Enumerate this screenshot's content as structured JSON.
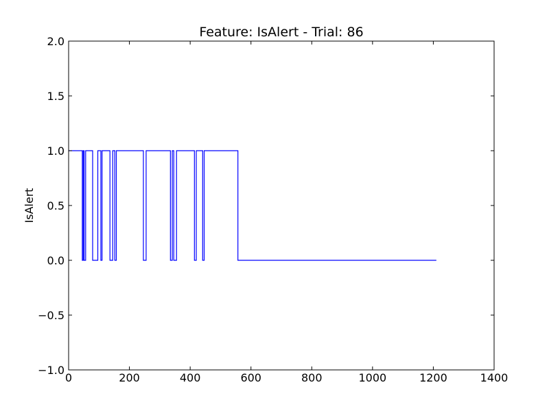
{
  "chart_data": {
    "type": "line",
    "title": "Feature: IsAlert - Trial: 86",
    "xlabel": "",
    "ylabel": "IsAlert",
    "xlim": [
      0,
      1400
    ],
    "ylim": [
      -1.0,
      2.0
    ],
    "x_ticks": [
      0,
      200,
      400,
      600,
      800,
      1000,
      1200,
      1400
    ],
    "x_tick_labels": [
      "0",
      "200",
      "400",
      "600",
      "800",
      "1000",
      "1200",
      "1400"
    ],
    "y_ticks": [
      -1.0,
      -0.5,
      0.0,
      0.5,
      1.0,
      1.5,
      2.0
    ],
    "y_tick_labels": [
      "−1.0",
      "−0.5",
      "0.0",
      "0.5",
      "1.0",
      "1.5",
      "2.0"
    ],
    "grid": false,
    "series": [
      {
        "color": "#0000ff",
        "step": true,
        "points": [
          [
            0,
            1
          ],
          [
            45,
            1
          ],
          [
            45,
            0
          ],
          [
            48,
            0
          ],
          [
            48,
            1
          ],
          [
            51,
            1
          ],
          [
            51,
            0
          ],
          [
            56,
            0
          ],
          [
            56,
            1
          ],
          [
            61,
            1
          ],
          [
            61,
            1
          ],
          [
            79,
            1
          ],
          [
            79,
            0
          ],
          [
            96,
            0
          ],
          [
            96,
            1
          ],
          [
            106,
            1
          ],
          [
            106,
            0
          ],
          [
            110,
            0
          ],
          [
            110,
            1
          ],
          [
            136,
            1
          ],
          [
            136,
            0
          ],
          [
            145,
            0
          ],
          [
            145,
            1
          ],
          [
            152,
            1
          ],
          [
            152,
            0
          ],
          [
            157,
            0
          ],
          [
            157,
            1
          ],
          [
            246,
            1
          ],
          [
            246,
            0
          ],
          [
            255,
            0
          ],
          [
            255,
            1
          ],
          [
            335,
            1
          ],
          [
            335,
            0
          ],
          [
            341,
            0
          ],
          [
            341,
            1
          ],
          [
            346,
            1
          ],
          [
            346,
            0
          ],
          [
            355,
            0
          ],
          [
            355,
            1
          ],
          [
            414,
            1
          ],
          [
            414,
            0
          ],
          [
            420,
            0
          ],
          [
            420,
            1
          ],
          [
            441,
            1
          ],
          [
            441,
            0
          ],
          [
            446,
            0
          ],
          [
            446,
            1
          ],
          [
            557,
            1
          ],
          [
            557,
            0
          ],
          [
            1210,
            0
          ]
        ]
      }
    ]
  }
}
